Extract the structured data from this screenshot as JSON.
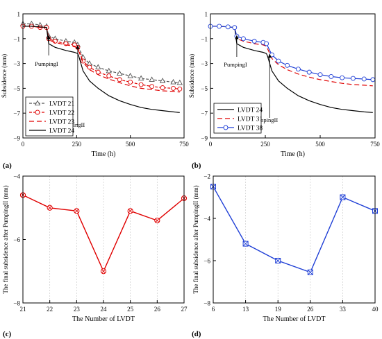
{
  "chart_data": [
    {
      "panel": "(a)",
      "type": "line",
      "xlabel": "Time (h)",
      "ylabel": "Subsidence (mm)",
      "xlim": [
        0,
        750
      ],
      "ylim": [
        -9,
        1
      ],
      "xticks": [
        0,
        250,
        500,
        750
      ],
      "yticks": [
        1,
        -1,
        -3,
        -5,
        -7,
        -9
      ],
      "grid": false,
      "legend": "bottom-left",
      "series": [
        {
          "name": "LVDT 21",
          "color": "#555555",
          "dash": "4,2",
          "marker": "triangle",
          "x": [
            0,
            40,
            80,
            110,
            120,
            150,
            200,
            240,
            255,
            280,
            310,
            350,
            400,
            450,
            500,
            550,
            600,
            650,
            700,
            730
          ],
          "y": [
            0.2,
            0.2,
            0.1,
            0.0,
            -0.8,
            -1.0,
            -1.2,
            -1.3,
            -1.5,
            -2.5,
            -3.0,
            -3.3,
            -3.6,
            -3.8,
            -4.0,
            -4.2,
            -4.3,
            -4.4,
            -4.5,
            -4.55
          ]
        },
        {
          "name": "LVDT 22",
          "color": "#e00000",
          "dash": "4,2",
          "marker": "circle",
          "x": [
            0,
            40,
            80,
            110,
            120,
            150,
            200,
            240,
            255,
            280,
            310,
            350,
            400,
            450,
            500,
            550,
            600,
            650,
            700,
            730
          ],
          "y": [
            0.0,
            0.0,
            -0.1,
            -0.1,
            -1.0,
            -1.2,
            -1.4,
            -1.5,
            -1.7,
            -2.8,
            -3.3,
            -3.7,
            -4.0,
            -4.3,
            -4.5,
            -4.7,
            -4.85,
            -4.95,
            -5.0,
            -5.05
          ]
        },
        {
          "name": "LVDT 23",
          "color": "#e00000",
          "dash": "7,4",
          "marker": "none",
          "x": [
            0,
            40,
            80,
            110,
            120,
            150,
            200,
            240,
            255,
            280,
            310,
            350,
            400,
            450,
            500,
            550,
            600,
            650,
            700,
            730
          ],
          "y": [
            0.0,
            0.0,
            -0.1,
            -0.1,
            -1.1,
            -1.3,
            -1.5,
            -1.6,
            -1.8,
            -2.9,
            -3.5,
            -3.9,
            -4.25,
            -4.55,
            -4.8,
            -5.0,
            -5.1,
            -5.2,
            -5.25,
            -5.3
          ]
        },
        {
          "name": "LVDT 24",
          "color": "#000000",
          "dash": "none",
          "marker": "none",
          "x": [
            0,
            40,
            80,
            110,
            120,
            150,
            200,
            240,
            255,
            260,
            280,
            310,
            350,
            400,
            450,
            500,
            550,
            600,
            650,
            700,
            730
          ],
          "y": [
            0.0,
            0.0,
            -0.05,
            -0.1,
            -1.4,
            -1.7,
            -1.95,
            -2.1,
            -2.2,
            -2.4,
            -3.6,
            -4.4,
            -5.0,
            -5.6,
            -6.0,
            -6.3,
            -6.55,
            -6.7,
            -6.8,
            -6.9,
            -6.95
          ]
        }
      ],
      "annotations": [
        {
          "text": "PumpingI",
          "x": 120,
          "y": -0.7
        },
        {
          "text": "PumpingII",
          "x": 255,
          "y": -1.5
        }
      ]
    },
    {
      "panel": "(b)",
      "type": "line",
      "xlabel": "Time (h)",
      "ylabel": "Subsidence (mm)",
      "xlim": [
        0,
        750
      ],
      "ylim": [
        -9,
        1
      ],
      "xticks": [
        0,
        250,
        500,
        750
      ],
      "yticks": [
        1,
        -1,
        -3,
        -5,
        -7,
        -9
      ],
      "grid": false,
      "legend": "bottom-left",
      "series": [
        {
          "name": "LVDT 24",
          "color": "#000000",
          "dash": "none",
          "marker": "none",
          "x": [
            0,
            40,
            80,
            110,
            120,
            150,
            200,
            240,
            255,
            260,
            280,
            310,
            350,
            400,
            450,
            500,
            550,
            600,
            650,
            700,
            740
          ],
          "y": [
            0.0,
            0.0,
            -0.05,
            -0.1,
            -1.4,
            -1.7,
            -1.95,
            -2.1,
            -2.2,
            -2.4,
            -3.6,
            -4.4,
            -5.0,
            -5.6,
            -6.0,
            -6.3,
            -6.55,
            -6.7,
            -6.8,
            -6.9,
            -6.95
          ]
        },
        {
          "name": "LVDT 31",
          "color": "#e00000",
          "dash": "7,4",
          "marker": "none",
          "x": [
            0,
            40,
            80,
            110,
            120,
            150,
            200,
            240,
            255,
            280,
            310,
            350,
            400,
            450,
            500,
            550,
            600,
            650,
            700,
            740
          ],
          "y": [
            0.0,
            0.0,
            -0.05,
            -0.1,
            -1.0,
            -1.2,
            -1.4,
            -1.5,
            -1.6,
            -2.6,
            -3.1,
            -3.5,
            -3.85,
            -4.1,
            -4.3,
            -4.45,
            -4.6,
            -4.7,
            -4.75,
            -4.8
          ]
        },
        {
          "name": "LVDT 38",
          "color": "#1f3fd6",
          "dash": "none",
          "marker": "circle",
          "x": [
            0,
            40,
            80,
            110,
            120,
            150,
            200,
            240,
            255,
            280,
            310,
            350,
            400,
            450,
            500,
            550,
            600,
            650,
            700,
            740
          ],
          "y": [
            0.0,
            0.0,
            -0.05,
            -0.1,
            -0.8,
            -1.0,
            -1.2,
            -1.3,
            -1.4,
            -2.3,
            -2.8,
            -3.15,
            -3.45,
            -3.7,
            -3.9,
            -4.05,
            -4.15,
            -4.2,
            -4.25,
            -4.3
          ]
        }
      ],
      "annotations": [
        {
          "text": "PumpingI",
          "x": 120,
          "y": -0.7
        },
        {
          "text": "PumpingII",
          "x": 270,
          "y": -2.2
        }
      ]
    },
    {
      "panel": "(c)",
      "type": "line",
      "xlabel": "The Number of LVDT",
      "ylabel": "The final subsidence after PumpingII (mm)",
      "categories": [
        "21",
        "22",
        "23",
        "24",
        "25",
        "26",
        "27"
      ],
      "values": [
        -4.6,
        -5.0,
        -5.1,
        -7.0,
        -5.1,
        -5.4,
        -4.7
      ],
      "ylim": [
        -8,
        -4
      ],
      "yticks": [
        -4,
        -6,
        -8
      ],
      "grid": true,
      "color": "#e00000",
      "marker": "circle-x"
    },
    {
      "panel": "(d)",
      "type": "line",
      "xlabel": "The Number of LVDT",
      "ylabel": "The final subsidence after PumpingII (mm)",
      "categories": [
        "6",
        "13",
        "19",
        "26",
        "33",
        "40"
      ],
      "values": [
        -2.5,
        -5.2,
        -6.0,
        -6.55,
        -3.0,
        -3.65
      ],
      "ylim": [
        -8,
        -2
      ],
      "yticks": [
        -2,
        -4,
        -6,
        -8
      ],
      "grid": true,
      "color": "#1f3fd6",
      "marker": "square-x"
    }
  ]
}
